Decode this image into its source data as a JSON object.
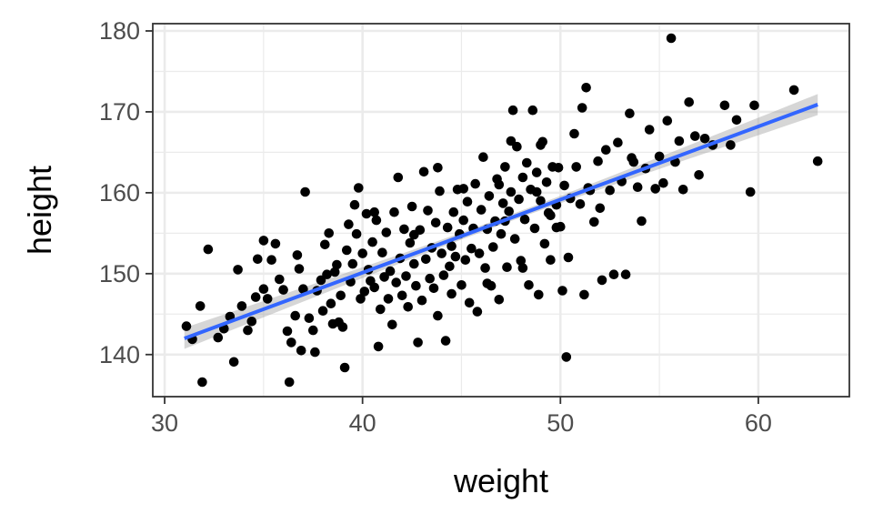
{
  "chart_data": {
    "type": "scatter",
    "title": "",
    "xlabel": "weight",
    "ylabel": "height",
    "xlim": [
      29.4,
      64.6
    ],
    "ylim": [
      134.8,
      180.9
    ],
    "x_ticks": [
      30,
      40,
      50,
      60
    ],
    "y_ticks": [
      140,
      150,
      160,
      170,
      180
    ],
    "x_minor_ticks": [
      35,
      45,
      55
    ],
    "y_minor_ticks": [
      145,
      155,
      165,
      175
    ],
    "grid": true,
    "colors": {
      "points": "#000000",
      "fit_line": "#3366ff",
      "ribbon": "#999999",
      "grid": "#ebebeb",
      "panel_border": "#333333"
    },
    "fit": {
      "method": "linear",
      "x": [
        31,
        63
      ],
      "y": [
        142.0,
        170.9
      ],
      "ci_halfwidth_ends": 1.3,
      "ci_halfwidth_center": 0.4
    },
    "points": [
      [
        31.1,
        143.5
      ],
      [
        31.4,
        141.9
      ],
      [
        31.8,
        146.0
      ],
      [
        31.9,
        136.6
      ],
      [
        32.2,
        153.0
      ],
      [
        32.7,
        142.1
      ],
      [
        33.0,
        143.2
      ],
      [
        33.3,
        144.7
      ],
      [
        33.5,
        139.1
      ],
      [
        33.7,
        150.5
      ],
      [
        33.9,
        146.0
      ],
      [
        34.2,
        143.0
      ],
      [
        34.4,
        144.1
      ],
      [
        34.6,
        147.1
      ],
      [
        34.7,
        151.8
      ],
      [
        35.0,
        148.1
      ],
      [
        35.2,
        146.9
      ],
      [
        35.4,
        151.7
      ],
      [
        35.6,
        153.7
      ],
      [
        35.8,
        149.3
      ],
      [
        36.0,
        148.0
      ],
      [
        36.2,
        142.9
      ],
      [
        36.3,
        136.6
      ],
      [
        36.4,
        141.5
      ],
      [
        36.6,
        144.8
      ],
      [
        36.7,
        152.3
      ],
      [
        36.8,
        150.6
      ],
      [
        37.0,
        148.1
      ],
      [
        37.1,
        160.1
      ],
      [
        37.3,
        144.5
      ],
      [
        37.5,
        143.0
      ],
      [
        37.6,
        140.3
      ],
      [
        37.7,
        147.9
      ],
      [
        37.9,
        149.2
      ],
      [
        38.0,
        145.4
      ],
      [
        38.2,
        149.9
      ],
      [
        38.3,
        155.0
      ],
      [
        38.4,
        146.3
      ],
      [
        38.5,
        143.8
      ],
      [
        38.6,
        150.2
      ],
      [
        38.7,
        151.1
      ],
      [
        38.8,
        144.0
      ],
      [
        38.9,
        147.3
      ],
      [
        39.0,
        143.4
      ],
      [
        39.1,
        138.4
      ],
      [
        39.2,
        152.9
      ],
      [
        39.3,
        156.1
      ],
      [
        39.4,
        149.0
      ],
      [
        39.5,
        151.2
      ],
      [
        39.6,
        158.5
      ],
      [
        39.7,
        154.9
      ],
      [
        39.8,
        160.6
      ],
      [
        39.9,
        146.9
      ],
      [
        40.0,
        152.5
      ],
      [
        40.1,
        147.8
      ],
      [
        40.2,
        157.4
      ],
      [
        40.3,
        150.5
      ],
      [
        40.4,
        149.1
      ],
      [
        40.5,
        153.9
      ],
      [
        40.6,
        148.3
      ],
      [
        40.7,
        156.6
      ],
      [
        40.8,
        141.0
      ],
      [
        40.9,
        145.6
      ],
      [
        41.0,
        152.6
      ],
      [
        41.1,
        149.6
      ],
      [
        41.2,
        155.1
      ],
      [
        41.3,
        146.9
      ],
      [
        41.4,
        150.3
      ],
      [
        41.5,
        143.7
      ],
      [
        41.6,
        157.6
      ],
      [
        41.7,
        148.9
      ],
      [
        41.8,
        161.9
      ],
      [
        41.9,
        151.9
      ],
      [
        42.0,
        147.3
      ],
      [
        42.1,
        155.5
      ],
      [
        42.2,
        149.7
      ],
      [
        42.3,
        145.9
      ],
      [
        42.4,
        153.8
      ],
      [
        42.5,
        158.3
      ],
      [
        42.6,
        151.2
      ],
      [
        42.7,
        148.5
      ],
      [
        42.8,
        141.5
      ],
      [
        42.9,
        155.4
      ],
      [
        43.0,
        146.7
      ],
      [
        43.1,
        162.6
      ],
      [
        43.2,
        151.8
      ],
      [
        43.3,
        157.8
      ],
      [
        43.4,
        149.4
      ],
      [
        43.5,
        153.2
      ],
      [
        43.6,
        148.2
      ],
      [
        43.7,
        156.3
      ],
      [
        43.8,
        144.8
      ],
      [
        43.9,
        160.2
      ],
      [
        44.0,
        152.5
      ],
      [
        44.1,
        149.8
      ],
      [
        44.2,
        141.7
      ],
      [
        44.3,
        155.7
      ],
      [
        44.4,
        150.9
      ],
      [
        44.5,
        147.5
      ],
      [
        44.6,
        157.6
      ],
      [
        44.7,
        152.1
      ],
      [
        44.8,
        160.4
      ],
      [
        44.9,
        154.9
      ],
      [
        45.0,
        148.6
      ],
      [
        45.1,
        156.6
      ],
      [
        45.2,
        151.7
      ],
      [
        45.3,
        158.9
      ],
      [
        45.4,
        146.4
      ],
      [
        45.5,
        153.1
      ],
      [
        45.6,
        155.6
      ],
      [
        45.7,
        161.1
      ],
      [
        45.8,
        145.3
      ],
      [
        45.9,
        152.5
      ],
      [
        46.0,
        157.9
      ],
      [
        46.1,
        164.4
      ],
      [
        46.2,
        150.7
      ],
      [
        46.3,
        155.5
      ],
      [
        46.4,
        159.6
      ],
      [
        46.5,
        148.5
      ],
      [
        46.6,
        153.3
      ],
      [
        46.7,
        156.5
      ],
      [
        46.8,
        161.7
      ],
      [
        46.9,
        146.8
      ],
      [
        47.0,
        154.9
      ],
      [
        47.1,
        158.7
      ],
      [
        47.2,
        163.2
      ],
      [
        47.3,
        150.8
      ],
      [
        47.4,
        157.7
      ],
      [
        47.5,
        160.1
      ],
      [
        47.6,
        170.2
      ],
      [
        47.7,
        154.3
      ],
      [
        47.8,
        165.7
      ],
      [
        47.9,
        159.2
      ],
      [
        48.0,
        151.6
      ],
      [
        48.1,
        161.9
      ],
      [
        48.2,
        156.7
      ],
      [
        48.3,
        163.7
      ],
      [
        48.4,
        148.6
      ],
      [
        48.5,
        160.4
      ],
      [
        48.6,
        170.2
      ],
      [
        48.7,
        155.6
      ],
      [
        48.8,
        162.5
      ],
      [
        48.9,
        147.4
      ],
      [
        49.0,
        159.0
      ],
      [
        49.1,
        166.3
      ],
      [
        49.2,
        153.7
      ],
      [
        49.3,
        161.3
      ],
      [
        49.4,
        157.5
      ],
      [
        49.5,
        151.7
      ],
      [
        49.6,
        163.2
      ],
      [
        49.8,
        158.5
      ],
      [
        50.0,
        155.8
      ],
      [
        50.1,
        147.9
      ],
      [
        50.2,
        160.9
      ],
      [
        50.3,
        139.7
      ],
      [
        50.5,
        159.3
      ],
      [
        50.7,
        167.3
      ],
      [
        50.8,
        163.2
      ],
      [
        51.0,
        158.6
      ],
      [
        51.1,
        170.5
      ],
      [
        51.2,
        147.4
      ],
      [
        51.3,
        173.0
      ],
      [
        51.5,
        160.3
      ],
      [
        51.7,
        156.4
      ],
      [
        51.9,
        163.9
      ],
      [
        52.1,
        149.2
      ],
      [
        52.3,
        165.3
      ],
      [
        52.5,
        160.3
      ],
      [
        52.7,
        149.9
      ],
      [
        52.9,
        166.2
      ],
      [
        53.1,
        161.4
      ],
      [
        53.3,
        149.9
      ],
      [
        53.5,
        169.8
      ],
      [
        53.7,
        163.8
      ],
      [
        53.9,
        160.7
      ],
      [
        54.1,
        156.5
      ],
      [
        54.3,
        163.0
      ],
      [
        54.5,
        167.8
      ],
      [
        54.8,
        160.5
      ],
      [
        55.0,
        164.5
      ],
      [
        55.2,
        161.2
      ],
      [
        55.4,
        168.9
      ],
      [
        55.6,
        179.1
      ],
      [
        55.8,
        163.8
      ],
      [
        56.0,
        166.4
      ],
      [
        56.2,
        160.4
      ],
      [
        56.5,
        171.2
      ],
      [
        56.8,
        167.0
      ],
      [
        57.0,
        162.2
      ],
      [
        57.3,
        166.7
      ],
      [
        57.7,
        165.9
      ],
      [
        58.3,
        170.8
      ],
      [
        58.6,
        165.9
      ],
      [
        58.9,
        169.0
      ],
      [
        59.6,
        160.1
      ],
      [
        59.8,
        170.8
      ],
      [
        61.8,
        172.7
      ],
      [
        63.0,
        163.9
      ],
      [
        38.1,
        153.6
      ],
      [
        43.8,
        163.1
      ],
      [
        46.9,
        161.0
      ],
      [
        48.8,
        160.1
      ],
      [
        49.9,
        163.1
      ],
      [
        35.0,
        154.1
      ],
      [
        47.5,
        166.4
      ],
      [
        49.0,
        165.9
      ],
      [
        51.4,
        160.6
      ],
      [
        36.9,
        140.5
      ],
      [
        40.6,
        157.6
      ],
      [
        44.5,
        153.4
      ],
      [
        47.2,
        156.5
      ],
      [
        49.5,
        157.2
      ],
      [
        50.4,
        152.0
      ],
      [
        42.6,
        154.8
      ],
      [
        45.1,
        160.5
      ],
      [
        48.1,
        150.7
      ],
      [
        52.0,
        158.1
      ],
      [
        53.6,
        164.3
      ],
      [
        46.3,
        148.8
      ],
      [
        49.8,
        155.7
      ]
    ]
  }
}
